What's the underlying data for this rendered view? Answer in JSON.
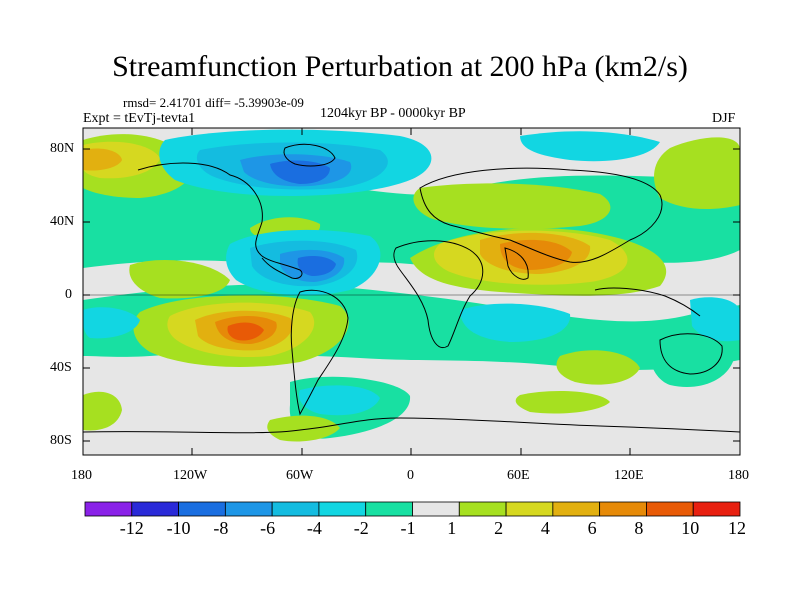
{
  "title": "Streamfunction Perturbation at 200 hPa (km2/s)",
  "stats": "rmsd= 2.41701  diff= -5.39903e-09",
  "experiment": "Expt = tEvTj-tevta1",
  "period": "1204kyr BP - 0000kyr BP",
  "season": "DJF",
  "lat_labels": [
    "80N",
    "40N",
    "0",
    "40S",
    "80S"
  ],
  "lon_labels": [
    "180",
    "120W",
    "60W",
    "0",
    "60E",
    "120E",
    "180"
  ],
  "colorbar": {
    "labels": [
      "-12",
      "-10",
      "-8",
      "-6",
      "-4",
      "-2",
      "-1",
      "1",
      "2",
      "4",
      "6",
      "8",
      "10",
      "12"
    ],
    "colors": [
      "#8a22e8",
      "#2a2ad8",
      "#1a6ee0",
      "#1e96e6",
      "#14bce0",
      "#12d6e2",
      "#18e0a2",
      "#e6e6e6",
      "#a6e020",
      "#d6d820",
      "#e2b010",
      "#e68a08",
      "#e85a06",
      "#e82010"
    ]
  }
}
